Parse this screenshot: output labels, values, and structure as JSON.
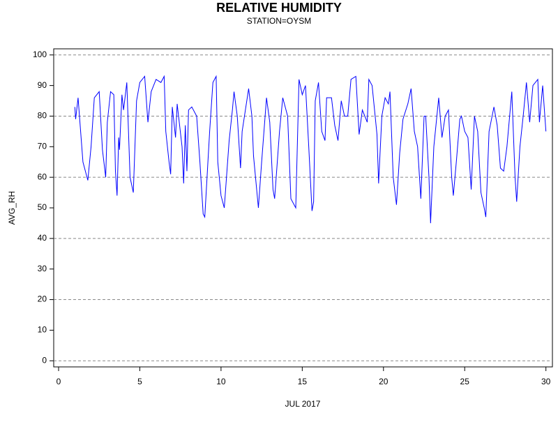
{
  "chart_data": {
    "type": "line",
    "title": "RELATIVE HUMIDITY",
    "subtitle": "STATION=OYSM",
    "xlabel": "JUL 2017",
    "ylabel": "AVG_RH",
    "xlim": [
      -0.3,
      30.4
    ],
    "ylim": [
      -2,
      102
    ],
    "xticks": [
      0,
      5,
      10,
      15,
      20,
      25,
      30
    ],
    "yticks": [
      0,
      10,
      20,
      30,
      40,
      50,
      60,
      70,
      80,
      90,
      100
    ],
    "ygrid": [
      0,
      20,
      40,
      60,
      80,
      100
    ],
    "series": [
      {
        "name": "AVG_RH",
        "color": "#0000ff",
        "x": [
          1.0,
          1.05,
          1.2,
          1.5,
          1.8,
          2.0,
          2.2,
          2.5,
          2.7,
          2.9,
          3.0,
          3.2,
          3.4,
          3.5,
          3.6,
          3.7,
          3.75,
          3.9,
          4.0,
          4.2,
          4.4,
          4.6,
          4.8,
          5.0,
          5.3,
          5.5,
          5.7,
          6.0,
          6.3,
          6.5,
          6.6,
          6.8,
          6.9,
          7.0,
          7.2,
          7.3,
          7.6,
          7.7,
          7.8,
          7.9,
          8.0,
          8.2,
          8.5,
          8.7,
          8.9,
          9.0,
          9.3,
          9.5,
          9.7,
          9.8,
          10.0,
          10.2,
          10.5,
          10.7,
          10.8,
          11.0,
          11.2,
          11.3,
          11.5,
          11.7,
          11.9,
          12.0,
          12.3,
          12.5,
          12.8,
          13.0,
          13.2,
          13.3,
          13.6,
          13.8,
          14.1,
          14.3,
          14.6,
          14.8,
          15.0,
          15.2,
          15.4,
          15.6,
          15.7,
          15.8,
          16.0,
          16.2,
          16.4,
          16.5,
          16.8,
          17.0,
          17.2,
          17.4,
          17.6,
          17.8,
          18.0,
          18.3,
          18.5,
          18.7,
          19.0,
          19.1,
          19.3,
          19.6,
          19.7,
          19.9,
          20.1,
          20.3,
          20.4,
          20.6,
          20.8,
          21.0,
          21.2,
          21.5,
          21.7,
          21.9,
          22.1,
          22.3,
          22.5,
          22.6,
          22.8,
          22.9,
          23.1,
          23.4,
          23.6,
          23.8,
          24.0,
          24.2,
          24.3,
          24.5,
          24.7,
          24.8,
          25.0,
          25.2,
          25.4,
          25.6,
          25.8,
          26.0,
          26.2,
          26.3,
          26.5,
          26.8,
          27.0,
          27.2,
          27.4,
          27.6,
          27.9,
          28.1,
          28.2,
          28.4,
          28.6,
          28.8,
          29.0,
          29.2,
          29.5,
          29.6,
          29.8,
          30.0
        ],
        "values": [
          83,
          79,
          86,
          65,
          59,
          70,
          86,
          88,
          69,
          60,
          78,
          88,
          87,
          62,
          54,
          73,
          69,
          87,
          82,
          91,
          60,
          55,
          85,
          91,
          93,
          78,
          88,
          92,
          91,
          93,
          75,
          65,
          61,
          83,
          73,
          84,
          70,
          58,
          77,
          62,
          82,
          83,
          80,
          65,
          48,
          47,
          75,
          91,
          93,
          65,
          54,
          50,
          72,
          82,
          88,
          80,
          63,
          75,
          82,
          89,
          80,
          67,
          50,
          65,
          86,
          78,
          56,
          53,
          75,
          86,
          80,
          53,
          50,
          92,
          87,
          90,
          70,
          49,
          52,
          85,
          91,
          75,
          72,
          86,
          86,
          77,
          72,
          85,
          80,
          80,
          92,
          93,
          74,
          82,
          78,
          92,
          90,
          74,
          58,
          80,
          86,
          84,
          88,
          60,
          51,
          68,
          79,
          84,
          89,
          75,
          70,
          53,
          80,
          80,
          60,
          45,
          70,
          86,
          73,
          80,
          82,
          60,
          54,
          66,
          79,
          80,
          75,
          73,
          56,
          80,
          75,
          55,
          50,
          47,
          75,
          83,
          77,
          63,
          62,
          70,
          88,
          60,
          52,
          70,
          80,
          91,
          78,
          90,
          92,
          78,
          90,
          75
        ]
      }
    ]
  }
}
